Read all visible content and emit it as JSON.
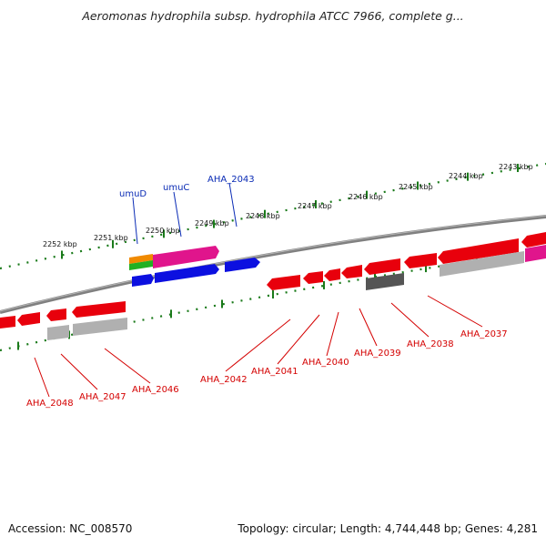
{
  "title": "Aeromonas hydrophila subsp. hydrophila ATCC 7966, complete g...",
  "accession": "Accession: NC_008570",
  "summary": "Topology: circular; Length: 4,744,448 bp; Genes: 4,281",
  "colors": {
    "cds_red": "#e8000c",
    "pink": "#e0158c",
    "blue": "#0c10e0",
    "gray": "#b0b0b0",
    "dark_gray": "#555555",
    "orange": "#f08a00",
    "green": "#22b022",
    "backbone": "#808080",
    "tick_green": "#1a7a1a",
    "label_red": "#d40000",
    "label_blue": "#0a2bb5"
  },
  "kbp_ticks": [
    "2252 kbp",
    "2251 kbp",
    "2250 kbp",
    "2249 kbp",
    "2248 kbp",
    "2247 kbp",
    "2246 kbp",
    "2245 kbp",
    "2244 kbp",
    "2243 kbp"
  ],
  "upper_gene_labels": [
    "umuD",
    "umuC",
    "AHA_2043"
  ],
  "lower_gene_labels": [
    "AHA_2048",
    "AHA_2047",
    "AHA_2046",
    "AHA_2042",
    "AHA_2041",
    "AHA_2040",
    "AHA_2039",
    "AHA_2038",
    "AHA_2037"
  ]
}
